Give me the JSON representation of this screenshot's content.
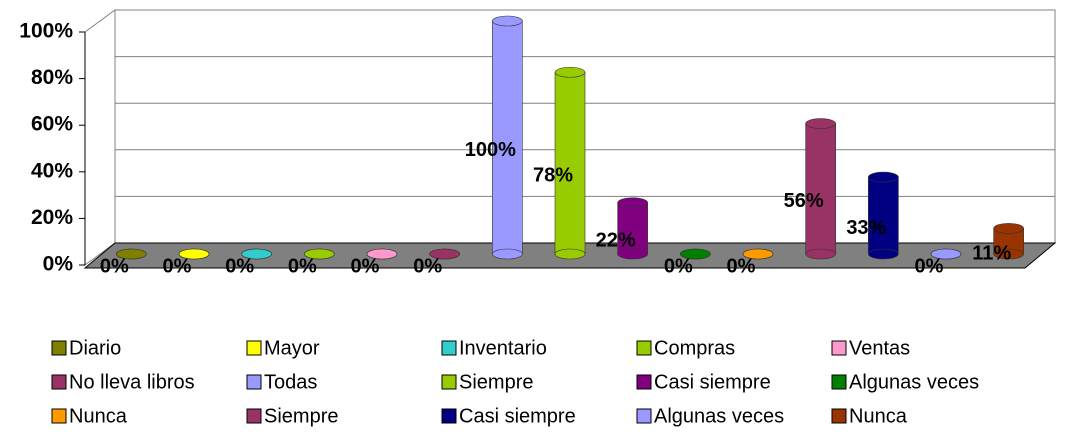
{
  "chart_data": {
    "type": "bar",
    "categories": [
      "Diario",
      "Mayor",
      "Inventario",
      "Compras",
      "Ventas",
      "No lleva libros",
      "Todas",
      "Siempre",
      "Casi siempre",
      "Algunas veces",
      "Nunca",
      "Siempre",
      "Casi siempre",
      "Algunas veces",
      "Nunca"
    ],
    "values": [
      0,
      0,
      0,
      0,
      0,
      0,
      100,
      78,
      22,
      0,
      0,
      56,
      33,
      0,
      11
    ],
    "value_labels": [
      "0%",
      "0%",
      "0%",
      "0%",
      "0%",
      "0%",
      "100%",
      "78%",
      "22%",
      "0%",
      "0%",
      "56%",
      "33%",
      "0%",
      "11%"
    ],
    "colors": [
      "#808000",
      "#ffff00",
      "#33cccc",
      "#99cc00",
      "#ff99cc",
      "#993366",
      "#9999ff",
      "#99cc00",
      "#800080",
      "#008000",
      "#ff9900",
      "#993366",
      "#000080",
      "#9999ff",
      "#993300"
    ],
    "ylim": [
      0,
      100
    ],
    "yticks": [
      {
        "value": 0,
        "label": "0%"
      },
      {
        "value": 20,
        "label": "20%"
      },
      {
        "value": 40,
        "label": "40%"
      },
      {
        "value": 60,
        "label": "60%"
      },
      {
        "value": 80,
        "label": "80%"
      },
      {
        "value": 100,
        "label": "100%"
      }
    ],
    "grid": true
  }
}
